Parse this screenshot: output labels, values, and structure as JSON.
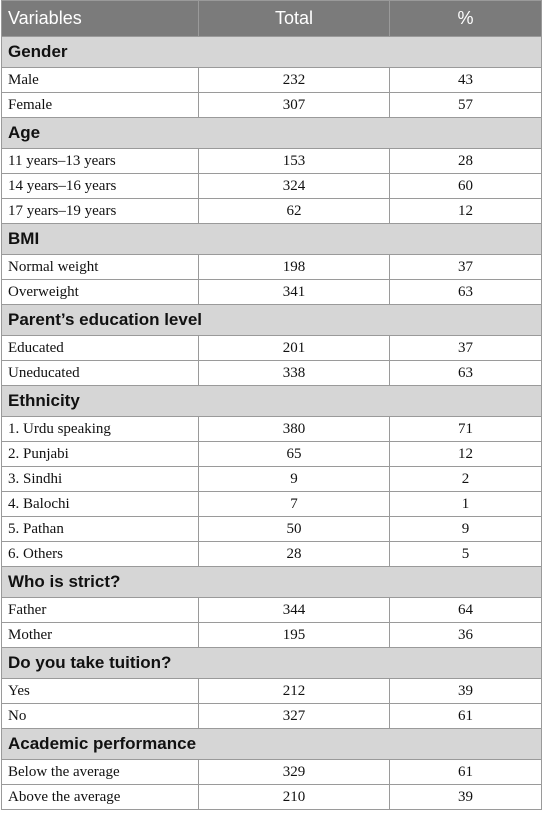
{
  "table": {
    "headers": [
      "Variables",
      "Total",
      "%"
    ],
    "sections": [
      {
        "title": "Gender",
        "rows": [
          {
            "label": "Male",
            "total": "232",
            "pct": "43"
          },
          {
            "label": "Female",
            "total": "307",
            "pct": "57"
          }
        ]
      },
      {
        "title": "Age",
        "rows": [
          {
            "label": "11 years–13 years",
            "total": "153",
            "pct": "28"
          },
          {
            "label": "14 years–16 years",
            "total": "324",
            "pct": "60"
          },
          {
            "label": "17 years–19 years",
            "total": "62",
            "pct": "12"
          }
        ]
      },
      {
        "title": "BMI",
        "rows": [
          {
            "label": "Normal weight",
            "total": "198",
            "pct": "37"
          },
          {
            "label": "Overweight",
            "total": "341",
            "pct": "63"
          }
        ]
      },
      {
        "title": "Parent’s education level",
        "rows": [
          {
            "label": "Educated",
            "total": "201",
            "pct": "37"
          },
          {
            "label": "Uneducated",
            "total": "338",
            "pct": "63"
          }
        ]
      },
      {
        "title": "Ethnicity",
        "rows": [
          {
            "label": "1. Urdu speaking",
            "total": "380",
            "pct": "71"
          },
          {
            "label": "2. Punjabi",
            "total": "65",
            "pct": "12"
          },
          {
            "label": "3. Sindhi",
            "total": "9",
            "pct": "2"
          },
          {
            "label": "4. Balochi",
            "total": "7",
            "pct": "1"
          },
          {
            "label": "5. Pathan",
            "total": "50",
            "pct": "9"
          },
          {
            "label": "6. Others",
            "total": "28",
            "pct": "5"
          }
        ]
      },
      {
        "title": "Who is strict?",
        "rows": [
          {
            "label": "Father",
            "total": "344",
            "pct": "64"
          },
          {
            "label": "Mother",
            "total": "195",
            "pct": "36"
          }
        ]
      },
      {
        "title": "Do you take tuition?",
        "rows": [
          {
            "label": "Yes",
            "total": "212",
            "pct": "39"
          },
          {
            "label": "No",
            "total": "327",
            "pct": "61"
          }
        ]
      },
      {
        "title": "Academic performance",
        "rows": [
          {
            "label": "Below the average",
            "total": "329",
            "pct": "61"
          },
          {
            "label": "Above the average",
            "total": "210",
            "pct": "39"
          }
        ]
      }
    ]
  }
}
